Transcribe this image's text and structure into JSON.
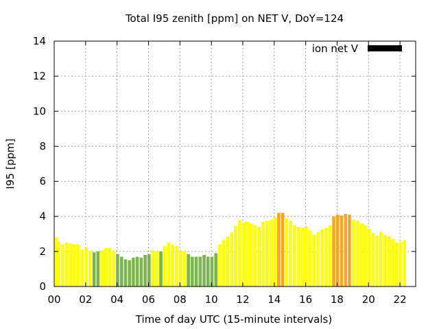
{
  "chart_data": {
    "type": "bar",
    "title": "Total I95 zenith [ppm] on NET V, DoY=124",
    "xlabel": "Time of day UTC (15-minute intervals)",
    "ylabel": "I95 [ppm]",
    "xlim": [
      0,
      23
    ],
    "ylim": [
      0,
      14
    ],
    "x_ticks": [
      {
        "value": 0,
        "label": "00"
      },
      {
        "value": 2,
        "label": "02"
      },
      {
        "value": 4,
        "label": "04"
      },
      {
        "value": 6,
        "label": "06"
      },
      {
        "value": 8,
        "label": "08"
      },
      {
        "value": 10,
        "label": "10"
      },
      {
        "value": 12,
        "label": "12"
      },
      {
        "value": 14,
        "label": "14"
      },
      {
        "value": 16,
        "label": "16"
      },
      {
        "value": 18,
        "label": "18"
      },
      {
        "value": 20,
        "label": "20"
      },
      {
        "value": 22,
        "label": "22"
      }
    ],
    "y_ticks": [
      0,
      2,
      4,
      6,
      8,
      10,
      12,
      14
    ],
    "grid": true,
    "legend": {
      "label": "ion net V",
      "color": "#000000",
      "placement": "top-right"
    },
    "interval_hours": 0.25,
    "colors": {
      "green": "#7ab648",
      "yellow": "#ffff00",
      "orange": "#f5a623"
    },
    "values": [
      2.8,
      2.55,
      2.4,
      2.5,
      2.45,
      2.4,
      2.4,
      2.1,
      2.25,
      2.05,
      1.95,
      2.0,
      2.05,
      2.2,
      2.2,
      2.05,
      1.85,
      1.7,
      1.55,
      1.5,
      1.65,
      1.7,
      1.65,
      1.8,
      1.85,
      2.05,
      2.0,
      2.0,
      2.3,
      2.5,
      2.4,
      2.3,
      2.05,
      2.0,
      1.85,
      1.7,
      1.7,
      1.7,
      1.8,
      1.7,
      1.7,
      1.9,
      2.4,
      2.65,
      2.85,
      3.1,
      3.45,
      3.8,
      3.65,
      3.7,
      3.6,
      3.5,
      3.4,
      3.7,
      3.75,
      3.8,
      3.95,
      4.2,
      4.2,
      3.9,
      3.75,
      3.5,
      3.4,
      3.35,
      3.4,
      3.2,
      2.95,
      3.1,
      3.25,
      3.35,
      3.5,
      4.0,
      4.1,
      4.05,
      4.15,
      4.1,
      3.8,
      3.75,
      3.6,
      3.5,
      3.3,
      3.05,
      2.9,
      3.1,
      2.95,
      2.85,
      2.7,
      2.5,
      2.55,
      2.65
    ],
    "bar_colors": [
      "yellow",
      "yellow",
      "yellow",
      "yellow",
      "yellow",
      "yellow",
      "yellow",
      "yellow",
      "yellow",
      "yellow",
      "green",
      "green",
      "yellow",
      "yellow",
      "yellow",
      "yellow",
      "green",
      "green",
      "green",
      "green",
      "green",
      "green",
      "green",
      "green",
      "green",
      "yellow",
      "yellow",
      "green",
      "yellow",
      "yellow",
      "yellow",
      "yellow",
      "yellow",
      "yellow",
      "green",
      "green",
      "green",
      "green",
      "green",
      "green",
      "green",
      "green",
      "yellow",
      "yellow",
      "yellow",
      "yellow",
      "yellow",
      "yellow",
      "yellow",
      "yellow",
      "yellow",
      "yellow",
      "yellow",
      "yellow",
      "yellow",
      "yellow",
      "yellow",
      "orange",
      "orange",
      "yellow",
      "yellow",
      "yellow",
      "yellow",
      "yellow",
      "yellow",
      "yellow",
      "yellow",
      "yellow",
      "yellow",
      "yellow",
      "yellow",
      "orange",
      "orange",
      "orange",
      "orange",
      "orange",
      "yellow",
      "yellow",
      "yellow",
      "yellow",
      "yellow",
      "yellow",
      "yellow",
      "yellow",
      "yellow",
      "yellow",
      "yellow",
      "yellow",
      "yellow",
      "yellow"
    ]
  }
}
